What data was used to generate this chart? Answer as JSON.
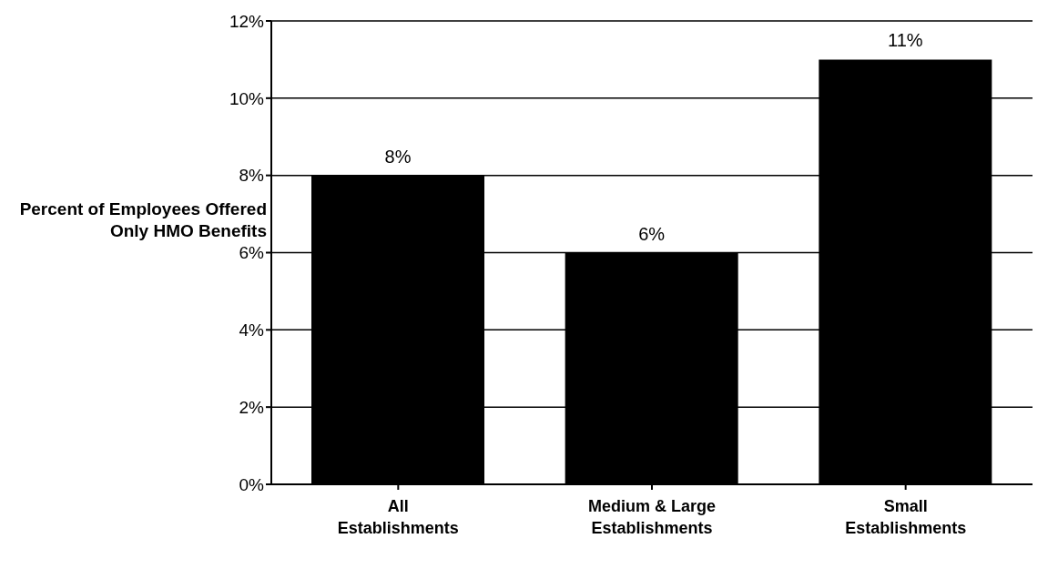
{
  "chart_data": {
    "type": "bar",
    "ylabel": "Percent of Employees Offered Only HMO Benefits",
    "categories": [
      "All Establishments",
      "Medium & Large Establishments",
      "Small Establishments"
    ],
    "values": [
      8,
      6,
      11
    ],
    "color": "#000000",
    "value_labels": [
      "8%",
      "6%",
      "11%"
    ],
    "ylim": [
      0,
      12
    ],
    "yticks": [
      {
        "value": 0,
        "label": "0%"
      },
      {
        "value": 2,
        "label": "2%"
      },
      {
        "value": 4,
        "label": "4%"
      },
      {
        "value": 6,
        "label": "6%"
      },
      {
        "value": 8,
        "label": "8%"
      },
      {
        "value": 10,
        "label": "10%"
      },
      {
        "value": 12,
        "label": "12%"
      }
    ],
    "grid": "y"
  }
}
